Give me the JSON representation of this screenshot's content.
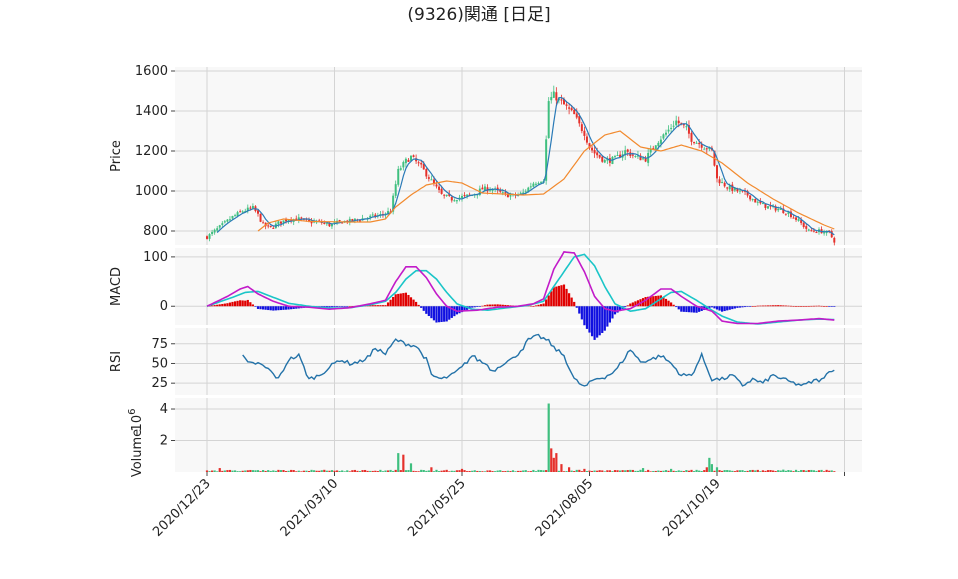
{
  "title": "(9326)関通 [日足]",
  "colors": {
    "panel_bg": "#f8f8f8",
    "grid": "#d4d4d4",
    "up": "#3fbf7f",
    "down": "#e5302b",
    "ma_short": "#2a7ab7",
    "ma_long": "#f28a2e",
    "macd": "#c21bc9",
    "signal": "#1ac5c8",
    "hist_pos": "#e00000",
    "hist_neg": "#1010e0",
    "rsi": "#2372a8"
  },
  "chart_data": {
    "type": "candlestick",
    "x_tick_labels": [
      "2020/12/23",
      "2021/03/10",
      "2021/05/25",
      "2021/08/05",
      "2021/10/19",
      ""
    ],
    "x_tick_index": [
      0,
      50,
      100,
      150,
      200,
      250
    ],
    "n_days": 247,
    "price_panel": {
      "ylabel": "Price",
      "yticks": [
        800,
        1000,
        1200,
        1400,
        1600
      ],
      "ylim": [
        730,
        1620
      ],
      "close_anchors": [
        [
          0,
          770
        ],
        [
          5,
          820
        ],
        [
          10,
          870
        ],
        [
          14,
          900
        ],
        [
          18,
          915
        ],
        [
          20,
          880
        ],
        [
          22,
          830
        ],
        [
          25,
          815
        ],
        [
          28,
          840
        ],
        [
          32,
          860
        ],
        [
          36,
          860
        ],
        [
          40,
          845
        ],
        [
          44,
          845
        ],
        [
          48,
          830
        ],
        [
          52,
          845
        ],
        [
          56,
          850
        ],
        [
          60,
          860
        ],
        [
          64,
          870
        ],
        [
          68,
          880
        ],
        [
          72,
          900
        ],
        [
          75,
          1100
        ],
        [
          78,
          1150
        ],
        [
          80,
          1170
        ],
        [
          84,
          1120
        ],
        [
          88,
          1050
        ],
        [
          92,
          980
        ],
        [
          96,
          960
        ],
        [
          100,
          970
        ],
        [
          104,
          980
        ],
        [
          108,
          1010
        ],
        [
          112,
          1010
        ],
        [
          116,
          985
        ],
        [
          120,
          975
        ],
        [
          124,
          990
        ],
        [
          128,
          1040
        ],
        [
          132,
          1060
        ],
        [
          134,
          1450
        ],
        [
          136,
          1480
        ],
        [
          140,
          1430
        ],
        [
          144,
          1380
        ],
        [
          146,
          1330
        ],
        [
          148,
          1290
        ],
        [
          150,
          1220
        ],
        [
          152,
          1190
        ],
        [
          156,
          1150
        ],
        [
          160,
          1160
        ],
        [
          164,
          1200
        ],
        [
          168,
          1170
        ],
        [
          172,
          1160
        ],
        [
          176,
          1240
        ],
        [
          180,
          1290
        ],
        [
          184,
          1350
        ],
        [
          188,
          1310
        ],
        [
          190,
          1260
        ],
        [
          194,
          1230
        ],
        [
          198,
          1200
        ],
        [
          200,
          1060
        ],
        [
          204,
          1020
        ],
        [
          208,
          1000
        ],
        [
          212,
          980
        ],
        [
          216,
          940
        ],
        [
          220,
          920
        ],
        [
          224,
          910
        ],
        [
          228,
          890
        ],
        [
          232,
          850
        ],
        [
          236,
          800
        ],
        [
          240,
          800
        ],
        [
          244,
          790
        ],
        [
          246,
          750
        ]
      ],
      "ma_long_anchors": [
        [
          20,
          800
        ],
        [
          24,
          840
        ],
        [
          30,
          860
        ],
        [
          40,
          848
        ],
        [
          56,
          845
        ],
        [
          64,
          845
        ],
        [
          70,
          860
        ],
        [
          74,
          920
        ],
        [
          80,
          980
        ],
        [
          86,
          1030
        ],
        [
          94,
          1050
        ],
        [
          100,
          1040
        ],
        [
          108,
          990
        ],
        [
          116,
          985
        ],
        [
          124,
          980
        ],
        [
          132,
          985
        ],
        [
          140,
          1060
        ],
        [
          148,
          1200
        ],
        [
          156,
          1280
        ],
        [
          162,
          1300
        ],
        [
          170,
          1220
        ],
        [
          178,
          1200
        ],
        [
          186,
          1230
        ],
        [
          194,
          1200
        ],
        [
          202,
          1140
        ],
        [
          212,
          1040
        ],
        [
          222,
          960
        ],
        [
          232,
          890
        ],
        [
          242,
          830
        ],
        [
          246,
          810
        ]
      ]
    },
    "macd_panel": {
      "ylabel": "MACD",
      "yticks": [
        0,
        100
      ],
      "ylim": [
        -38,
        118
      ],
      "macd_anchors": [
        [
          0,
          0
        ],
        [
          8,
          20
        ],
        [
          13,
          35
        ],
        [
          16,
          40
        ],
        [
          20,
          25
        ],
        [
          26,
          10
        ],
        [
          32,
          0
        ],
        [
          40,
          -2
        ],
        [
          48,
          -6
        ],
        [
          56,
          -3
        ],
        [
          64,
          5
        ],
        [
          70,
          12
        ],
        [
          74,
          50
        ],
        [
          78,
          80
        ],
        [
          82,
          80
        ],
        [
          86,
          58
        ],
        [
          90,
          25
        ],
        [
          94,
          0
        ],
        [
          98,
          -10
        ],
        [
          106,
          -8
        ],
        [
          114,
          -2
        ],
        [
          122,
          0
        ],
        [
          128,
          5
        ],
        [
          132,
          15
        ],
        [
          136,
          75
        ],
        [
          140,
          110
        ],
        [
          144,
          108
        ],
        [
          148,
          70
        ],
        [
          152,
          20
        ],
        [
          156,
          -5
        ],
        [
          160,
          -10
        ],
        [
          166,
          -5
        ],
        [
          172,
          12
        ],
        [
          178,
          35
        ],
        [
          182,
          35
        ],
        [
          186,
          20
        ],
        [
          192,
          0
        ],
        [
          198,
          -10
        ],
        [
          202,
          -30
        ],
        [
          208,
          -35
        ],
        [
          216,
          -35
        ],
        [
          224,
          -30
        ],
        [
          232,
          -28
        ],
        [
          240,
          -25
        ],
        [
          246,
          -28
        ]
      ],
      "signal_anchors": [
        [
          0,
          0
        ],
        [
          10,
          18
        ],
        [
          15,
          28
        ],
        [
          20,
          30
        ],
        [
          26,
          18
        ],
        [
          32,
          6
        ],
        [
          40,
          0
        ],
        [
          48,
          -4
        ],
        [
          56,
          -3
        ],
        [
          64,
          3
        ],
        [
          70,
          10
        ],
        [
          74,
          28
        ],
        [
          78,
          55
        ],
        [
          82,
          72
        ],
        [
          86,
          72
        ],
        [
          90,
          55
        ],
        [
          94,
          28
        ],
        [
          98,
          5
        ],
        [
          104,
          -6
        ],
        [
          110,
          -8
        ],
        [
          118,
          -3
        ],
        [
          126,
          2
        ],
        [
          132,
          10
        ],
        [
          136,
          40
        ],
        [
          140,
          70
        ],
        [
          144,
          100
        ],
        [
          148,
          105
        ],
        [
          152,
          82
        ],
        [
          156,
          40
        ],
        [
          160,
          5
        ],
        [
          166,
          -10
        ],
        [
          172,
          -5
        ],
        [
          178,
          15
        ],
        [
          182,
          28
        ],
        [
          186,
          30
        ],
        [
          192,
          12
        ],
        [
          198,
          -8
        ],
        [
          202,
          -20
        ],
        [
          208,
          -32
        ],
        [
          216,
          -36
        ],
        [
          224,
          -32
        ],
        [
          232,
          -28
        ],
        [
          240,
          -26
        ],
        [
          246,
          -27
        ]
      ]
    },
    "rsi_panel": {
      "ylabel": "RSI",
      "yticks": [
        25,
        50,
        75
      ],
      "ylim": [
        10,
        95
      ],
      "start_index": 14,
      "rsi_anchors": [
        [
          14,
          60
        ],
        [
          16,
          50
        ],
        [
          20,
          50
        ],
        [
          24,
          43
        ],
        [
          28,
          30
        ],
        [
          32,
          55
        ],
        [
          36,
          60
        ],
        [
          40,
          30
        ],
        [
          44,
          35
        ],
        [
          48,
          45
        ],
        [
          52,
          55
        ],
        [
          56,
          50
        ],
        [
          60,
          52
        ],
        [
          64,
          60
        ],
        [
          66,
          70
        ],
        [
          70,
          62
        ],
        [
          74,
          80
        ],
        [
          78,
          75
        ],
        [
          82,
          72
        ],
        [
          86,
          55
        ],
        [
          88,
          35
        ],
        [
          92,
          30
        ],
        [
          96,
          35
        ],
        [
          100,
          45
        ],
        [
          104,
          60
        ],
        [
          106,
          55
        ],
        [
          110,
          48
        ],
        [
          112,
          40
        ],
        [
          116,
          50
        ],
        [
          120,
          56
        ],
        [
          124,
          70
        ],
        [
          126,
          80
        ],
        [
          130,
          85
        ],
        [
          134,
          78
        ],
        [
          136,
          70
        ],
        [
          140,
          60
        ],
        [
          142,
          45
        ],
        [
          144,
          30
        ],
        [
          148,
          20
        ],
        [
          152,
          30
        ],
        [
          156,
          33
        ],
        [
          160,
          40
        ],
        [
          164,
          58
        ],
        [
          166,
          68
        ],
        [
          170,
          52
        ],
        [
          174,
          55
        ],
        [
          178,
          60
        ],
        [
          182,
          50
        ],
        [
          186,
          35
        ],
        [
          190,
          35
        ],
        [
          194,
          60
        ],
        [
          198,
          30
        ],
        [
          202,
          30
        ],
        [
          206,
          35
        ],
        [
          210,
          22
        ],
        [
          214,
          30
        ],
        [
          218,
          25
        ],
        [
          222,
          35
        ],
        [
          226,
          30
        ],
        [
          230,
          25
        ],
        [
          234,
          22
        ],
        [
          238,
          28
        ],
        [
          242,
          30
        ],
        [
          244,
          42
        ],
        [
          246,
          41
        ]
      ]
    },
    "volume_panel": {
      "ylabel": "Volume",
      "scale_label": "10",
      "scale_exp": "6",
      "yticks": [
        2,
        4
      ],
      "ylim": [
        0,
        4.7
      ],
      "spikes": [
        [
          5,
          0.25
        ],
        [
          20,
          0.12
        ],
        [
          75,
          1.2
        ],
        [
          77,
          1.1
        ],
        [
          80,
          0.55
        ],
        [
          88,
          0.3
        ],
        [
          100,
          0.2
        ],
        [
          134,
          4.35
        ],
        [
          135,
          1.5
        ],
        [
          136,
          0.9
        ],
        [
          137,
          1.2
        ],
        [
          139,
          0.5
        ],
        [
          142,
          0.3
        ],
        [
          148,
          0.2
        ],
        [
          171,
          0.25
        ],
        [
          182,
          0.2
        ],
        [
          196,
          0.3
        ],
        [
          197,
          0.9
        ],
        [
          198,
          0.5
        ],
        [
          200,
          0.3
        ],
        [
          226,
          0.15
        ]
      ]
    }
  }
}
